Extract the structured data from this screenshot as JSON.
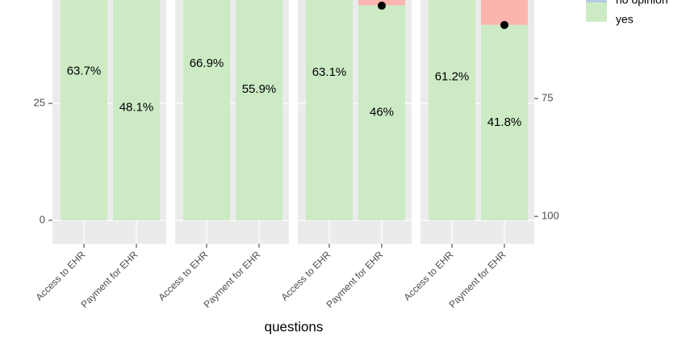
{
  "chart_data": {
    "type": "bar",
    "stacked": true,
    "x_label": "questions",
    "categories": [
      "Access to EHR",
      "Payment for EHR",
      "Access to EHR",
      "Payment for EHR",
      "Access to EHR",
      "Payment for EHR",
      "Access to EHR",
      "Payment for EHR"
    ],
    "series": [
      {
        "name": "yes",
        "color": "#ccebc5",
        "values": [
          63.7,
          48.1,
          66.9,
          55.9,
          63.1,
          46,
          61.2,
          41.8
        ],
        "value_labels": [
          "63.7%",
          "48.1%",
          "66.9%",
          "55.9%",
          "63.1%",
          "46%",
          "61.2%",
          "41.8%"
        ]
      },
      {
        "color": "#fbb4ae",
        "values": [
          null,
          null,
          null,
          null,
          null,
          10,
          null,
          12
        ]
      },
      {
        "type": "line",
        "axis": "y2",
        "color": "#000000",
        "values": [
          null,
          null,
          null,
          null,
          null,
          55.3,
          null,
          59.4
        ]
      }
    ],
    "legend": [
      {
        "name": "no opinion",
        "color": "#b3cde3"
      },
      {
        "name": "yes",
        "color": "#ccebc5"
      }
    ],
    "ylim": [
      -5,
      47.1
    ],
    "yticks": [
      0,
      25
    ],
    "y2lim": [
      105.8,
      54.1
    ],
    "y2ticks": [
      75,
      100
    ],
    "grid": true
  }
}
